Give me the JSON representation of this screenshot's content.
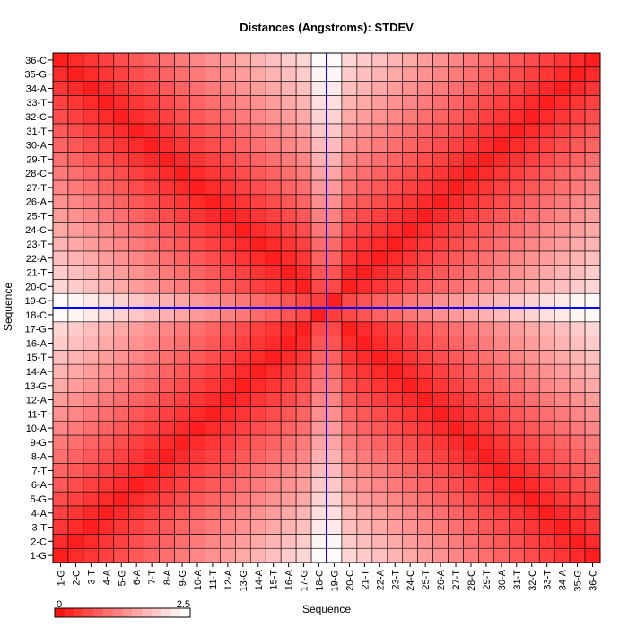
{
  "chart_data": {
    "type": "heatmap",
    "title": "Distances (Angstroms):  STDEV",
    "xlabel": "Sequence",
    "ylabel": "Sequence",
    "labels": [
      "1-G",
      "2-C",
      "3-T",
      "4-A",
      "5-G",
      "6-A",
      "7-T",
      "8-A",
      "9-G",
      "10-A",
      "11-T",
      "12-A",
      "13-G",
      "14-A",
      "15-T",
      "16-A",
      "17-G",
      "18-C",
      "19-G",
      "20-C",
      "21-T",
      "22-A",
      "23-T",
      "24-C",
      "25-T",
      "26-A",
      "27-T",
      "28-C",
      "29-T",
      "30-A",
      "31-T",
      "32-C",
      "33-T",
      "34-A",
      "35-G",
      "36-C"
    ],
    "color_scale": {
      "min": 0,
      "max": 2.5,
      "min_label": "0",
      "max_label": "2.5",
      "low_color": "#ff0000",
      "high_color": "#ffffff"
    },
    "crosshair": {
      "x_label": "18-C",
      "y_label": "18-C",
      "color": "#0000ff"
    },
    "grid": true
  }
}
